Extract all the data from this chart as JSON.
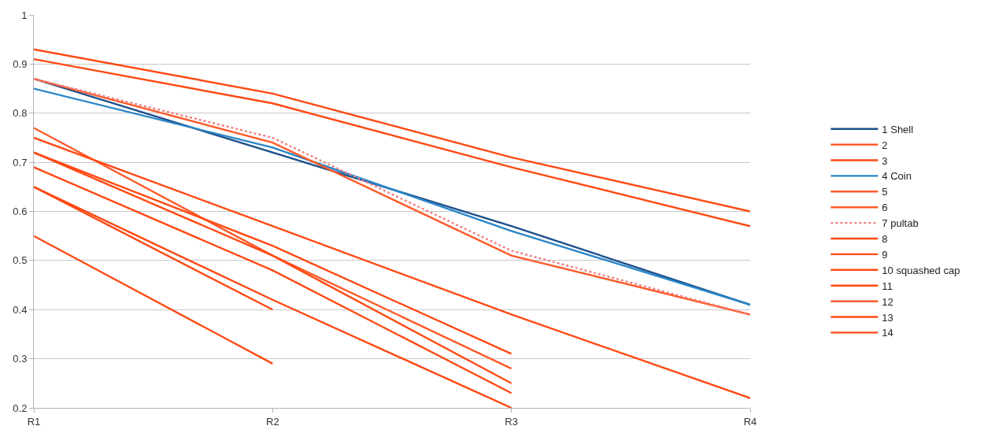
{
  "chart_data": {
    "type": "line",
    "categories": [
      "R1",
      "R2",
      "R3",
      "R4"
    ],
    "ylim": [
      0.2,
      1
    ],
    "yticks": [
      0.2,
      0.3,
      0.4,
      0.5,
      0.6,
      0.7,
      0.8,
      0.9,
      1
    ],
    "grid": "y",
    "legend": "right",
    "marker": "none",
    "series": [
      {
        "name": "1 Shell",
        "color": "#1c4f8a",
        "values": [
          0.87,
          0.72,
          0.57,
          0.41
        ]
      },
      {
        "name": "2",
        "color": "#ff4a14",
        "values": [
          0.93,
          0.84,
          0.71,
          0.6
        ]
      },
      {
        "name": "3",
        "color": "#ff4a14",
        "values": [
          0.91,
          0.82,
          0.69,
          0.57
        ]
      },
      {
        "name": "4 Coin",
        "color": "#2a86c8",
        "values": [
          0.85,
          0.73,
          0.56,
          0.41
        ]
      },
      {
        "name": "5",
        "color": "#ff5a28",
        "values": [
          0.87,
          0.74,
          0.51,
          0.39
        ]
      },
      {
        "name": "6",
        "color": "#ff5a28",
        "values": [
          0.77,
          0.51,
          0.28,
          null
        ]
      },
      {
        "name": "7 pultab",
        "color": "#f08080",
        "line_style": "dotted",
        "values": [
          0.87,
          0.75,
          0.52,
          0.39
        ]
      },
      {
        "name": "8",
        "color": "#ff4a14",
        "values": [
          0.75,
          0.57,
          0.39,
          0.22
        ]
      },
      {
        "name": "9",
        "color": "#ff4a14",
        "values": [
          0.72,
          0.53,
          0.31,
          null
        ]
      },
      {
        "name": "10 squashed cap",
        "color": "#ff4a14",
        "values": [
          0.72,
          0.51,
          0.25,
          null
        ]
      },
      {
        "name": "11",
        "color": "#ff4a14",
        "values": [
          0.69,
          0.48,
          0.23,
          null
        ]
      },
      {
        "name": "12",
        "color": "#ff4a14",
        "values": [
          0.65,
          0.42,
          0.2,
          null
        ]
      },
      {
        "name": "13",
        "color": "#ff4a14",
        "values": [
          0.65,
          0.4,
          null,
          null
        ]
      },
      {
        "name": "14",
        "color": "#ff4a14",
        "values": [
          0.55,
          0.29,
          null,
          null
        ]
      }
    ]
  }
}
